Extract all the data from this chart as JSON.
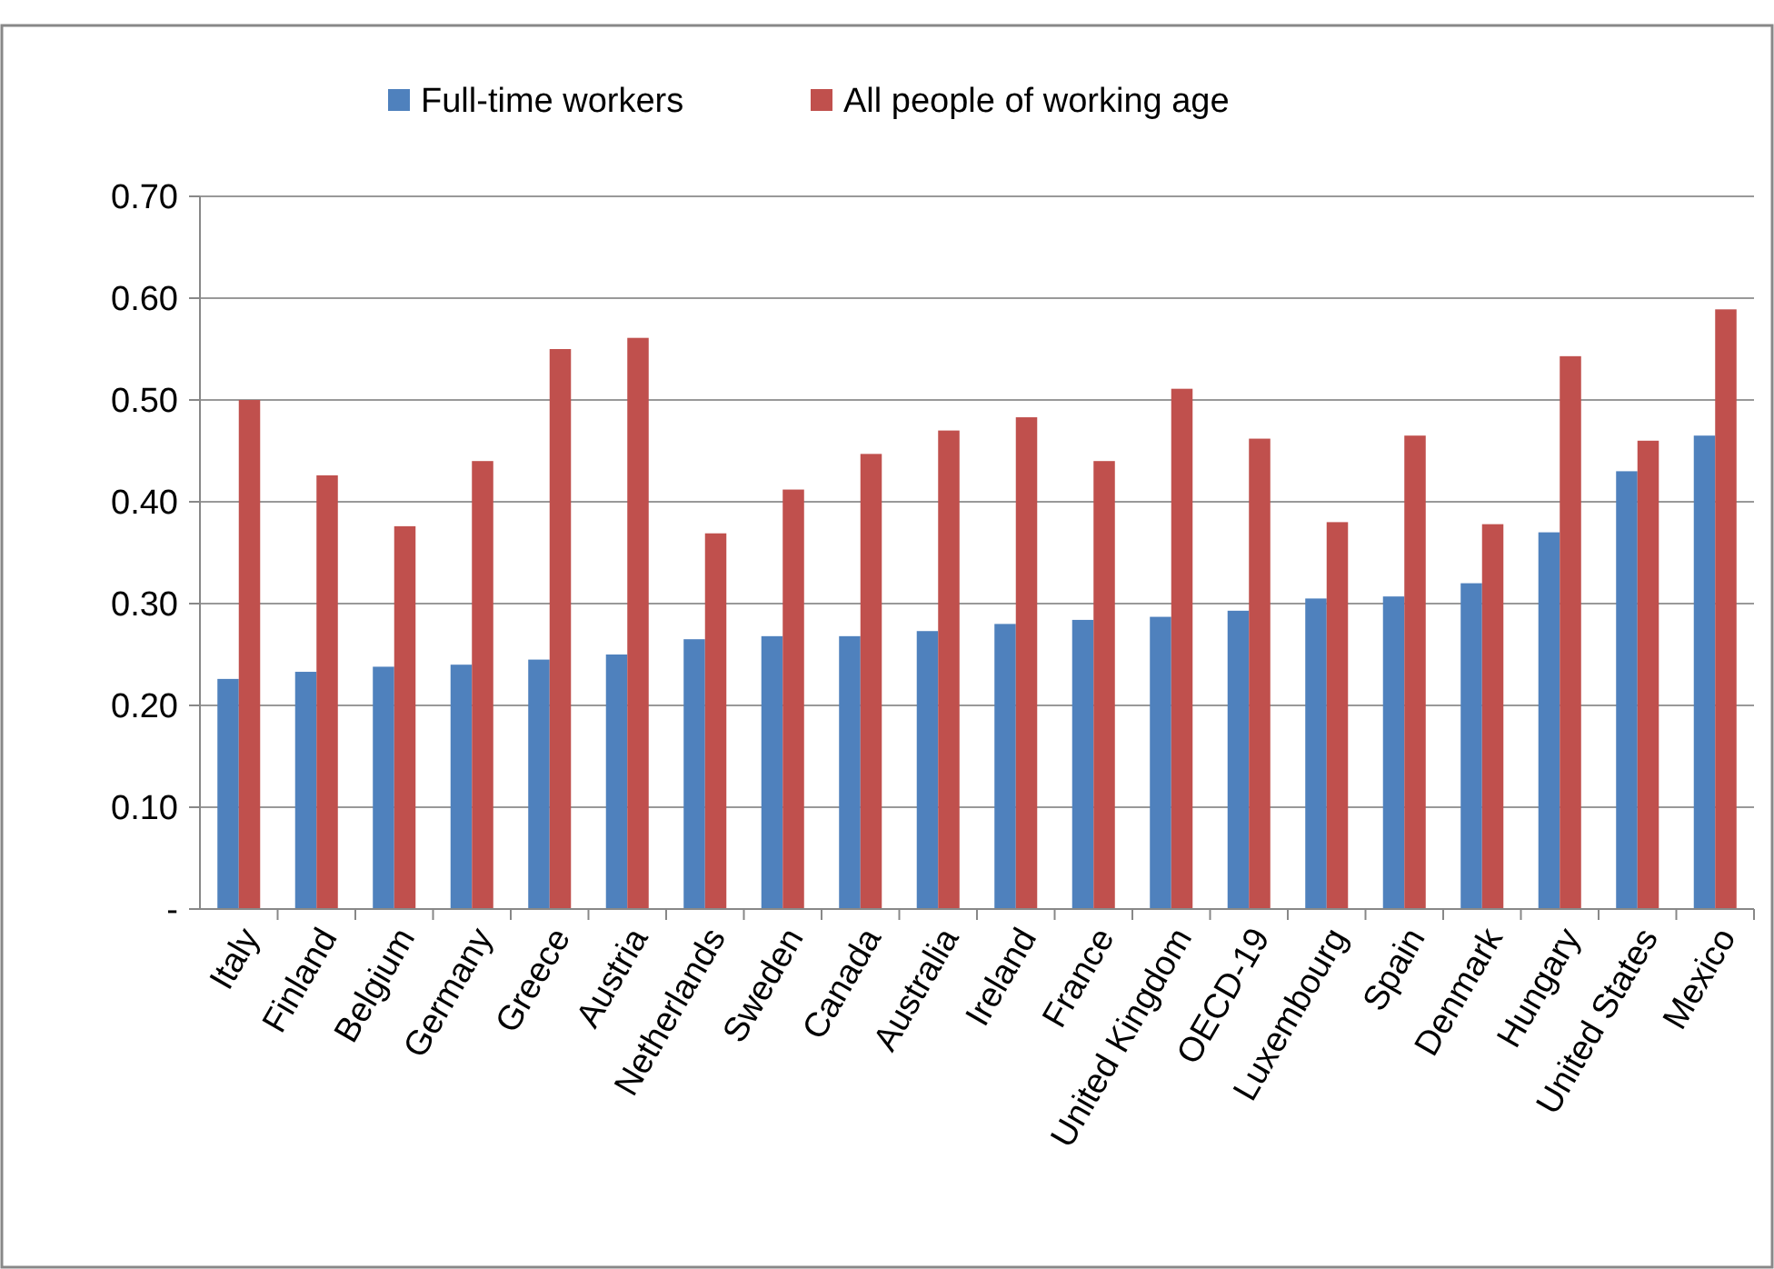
{
  "chart_data": {
    "type": "bar",
    "categories": [
      "Italy",
      "Finland",
      "Belgium",
      "Germany",
      "Greece",
      "Austria",
      "Netherlands",
      "Sweden",
      "Canada",
      "Australia",
      "Ireland",
      "France",
      "United Kingdom",
      "OECD-19",
      "Luxembourg",
      "Spain",
      "Denmark",
      "Hungary",
      "United States",
      "Mexico"
    ],
    "series": [
      {
        "name": "Full-time workers",
        "color": "#4f81bd",
        "values": [
          0.226,
          0.233,
          0.238,
          0.24,
          0.245,
          0.25,
          0.265,
          0.268,
          0.268,
          0.273,
          0.28,
          0.284,
          0.287,
          0.293,
          0.305,
          0.307,
          0.32,
          0.37,
          0.43,
          0.465
        ]
      },
      {
        "name": "All people of working age",
        "color": "#c0504d",
        "values": [
          0.5,
          0.426,
          0.376,
          0.44,
          0.55,
          0.561,
          0.369,
          0.412,
          0.447,
          0.47,
          0.483,
          0.44,
          0.511,
          0.462,
          0.38,
          0.465,
          0.378,
          0.543,
          0.46,
          0.589
        ]
      }
    ],
    "ylim": [
      0,
      0.7
    ],
    "yticks": [
      {
        "value": 0,
        "label": "-"
      },
      {
        "value": 0.1,
        "label": "0.10"
      },
      {
        "value": 0.2,
        "label": "0.20"
      },
      {
        "value": 0.3,
        "label": "0.30"
      },
      {
        "value": 0.4,
        "label": "0.40"
      },
      {
        "value": 0.5,
        "label": "0.50"
      },
      {
        "value": 0.6,
        "label": "0.60"
      },
      {
        "value": 0.7,
        "label": "0.70"
      }
    ],
    "grid": "y",
    "legend": "top"
  }
}
